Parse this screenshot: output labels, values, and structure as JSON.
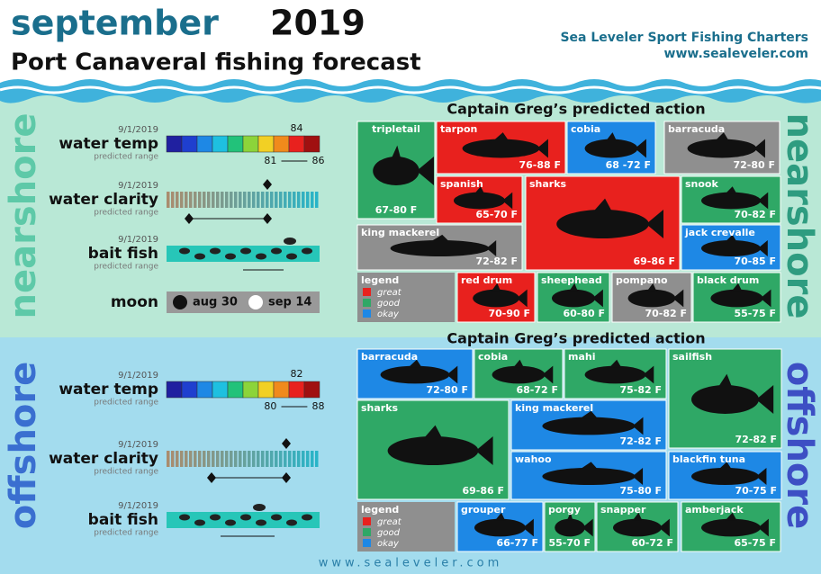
{
  "header": {
    "month": "september",
    "year": "2019",
    "subtitle": "Port Canaveral fishing forecast",
    "company": "Sea Leveler Sport Fishing Charters",
    "url": "www.sealeveler.com"
  },
  "sections": [
    {
      "name": "nearshore",
      "action_title": "Captain Greg’s predicted action",
      "metrics": [
        {
          "date": "9/1/2019",
          "label": "water temp",
          "sublabel": "predicted range",
          "value": 84,
          "low": 81,
          "high": 86
        },
        {
          "date": "9/1/2019",
          "label": "water clarity",
          "sublabel": "predicted range"
        },
        {
          "date": "9/1/2019",
          "label": "bait fish",
          "sublabel": "predicted range"
        }
      ],
      "moon": {
        "label": "moon",
        "new": "aug 30",
        "full": "sep 14"
      },
      "legend": {
        "title": "legend",
        "items": [
          {
            "name": "great",
            "color": "#e8211e"
          },
          {
            "name": "good",
            "color": "#2fa866"
          },
          {
            "name": "okay",
            "color": "#1e88e5"
          }
        ]
      },
      "fish": [
        {
          "name": "tripletail",
          "range": "67-80 F",
          "color": "#2fa866"
        },
        {
          "name": "tarpon",
          "range": "76-88 F",
          "color": "#e8211e"
        },
        {
          "name": "cobia",
          "range": "68 -72 F",
          "color": "#1e88e5"
        },
        {
          "name": "barracuda",
          "range": "72-80 F",
          "color": "#8f8f8f"
        },
        {
          "name": "spanish",
          "range": "65-70 F",
          "color": "#e8211e"
        },
        {
          "name": "sharks",
          "range": "69-86 F",
          "color": "#e8211e"
        },
        {
          "name": "snook",
          "range": "70-82 F",
          "color": "#2fa866"
        },
        {
          "name": "king mackerel",
          "range": "72-82 F",
          "color": "#8f8f8f"
        },
        {
          "name": "jack crevalle",
          "range": "70-85 F",
          "color": "#1e88e5"
        },
        {
          "name": "red drum",
          "range": "70-90 F",
          "color": "#e8211e"
        },
        {
          "name": "sheephead",
          "range": "60-80 F",
          "color": "#2fa866"
        },
        {
          "name": "pompano",
          "range": "70-82 F",
          "color": "#8f8f8f"
        },
        {
          "name": "black drum",
          "range": "55-75 F",
          "color": "#2fa866"
        }
      ]
    },
    {
      "name": "offshore",
      "action_title": "Captain Greg’s predicted action",
      "metrics": [
        {
          "date": "9/1/2019",
          "label": "water temp",
          "sublabel": "predicted range",
          "value": 82,
          "low": 80,
          "high": 88
        },
        {
          "date": "9/1/2019",
          "label": "water clarity",
          "sublabel": "predicted range"
        },
        {
          "date": "9/1/2019",
          "label": "bait fish",
          "sublabel": "predicted range"
        }
      ],
      "legend": {
        "title": "legend",
        "items": [
          {
            "name": "great",
            "color": "#e8211e"
          },
          {
            "name": "good",
            "color": "#2fa866"
          },
          {
            "name": "okay",
            "color": "#1e88e5"
          }
        ]
      },
      "fish": [
        {
          "name": "barracuda",
          "range": "72-80 F",
          "color": "#1e88e5"
        },
        {
          "name": "cobia",
          "range": "68-72 F",
          "color": "#2fa866"
        },
        {
          "name": "mahi",
          "range": "75-82 F",
          "color": "#2fa866"
        },
        {
          "name": "sailfish",
          "range": "72-82 F",
          "color": "#2fa866"
        },
        {
          "name": "sharks",
          "range": "69-86 F",
          "color": "#2fa866"
        },
        {
          "name": "king mackerel",
          "range": "72-82 F",
          "color": "#1e88e5"
        },
        {
          "name": "wahoo",
          "range": "75-80 F",
          "color": "#1e88e5"
        },
        {
          "name": "blackfin tuna",
          "range": "70-75 F",
          "color": "#1e88e5"
        },
        {
          "name": "grouper",
          "range": "66-77 F",
          "color": "#1e88e5"
        },
        {
          "name": "porgy",
          "range": "55-70 F",
          "color": "#2fa866"
        },
        {
          "name": "snapper",
          "range": "60-72 F",
          "color": "#2fa866"
        },
        {
          "name": "amberjack",
          "range": "65-75 F",
          "color": "#2fa866"
        }
      ]
    }
  ],
  "footer": "www.sealeveler.com"
}
